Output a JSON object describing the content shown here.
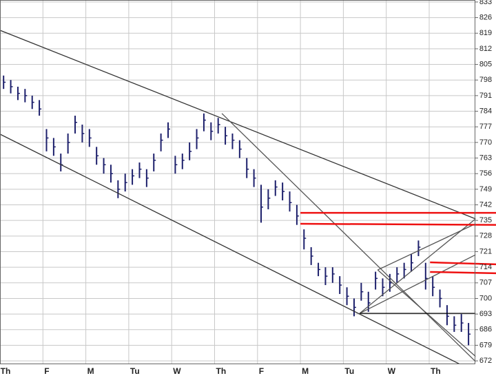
{
  "chart_data": {
    "type": "hlc",
    "categories": [
      "Th",
      "F",
      "M",
      "Tu",
      "W",
      "Th",
      "F",
      "M",
      "Tu",
      "W",
      "Th"
    ],
    "color": "#1c1f6b",
    "high": [
      800,
      798,
      795,
      794,
      791,
      789,
      776,
      772,
      765,
      774,
      782,
      778,
      776,
      768,
      763,
      760,
      753,
      756,
      758,
      761,
      758,
      765,
      774,
      779,
      764,
      765,
      770,
      776,
      783,
      779,
      781,
      777,
      774,
      771,
      763,
      758,
      751,
      749,
      753,
      752,
      748,
      742,
      731,
      723,
      716,
      714,
      714,
      710,
      705,
      700,
      707,
      703,
      712,
      709,
      711,
      714,
      716,
      720,
      726,
      716,
      710,
      704,
      697,
      692,
      693,
      689
    ],
    "low": [
      794,
      792,
      789,
      788,
      785,
      782,
      766,
      764,
      757,
      765,
      774,
      770,
      768,
      760,
      756,
      752,
      745,
      748,
      751,
      754,
      750,
      757,
      766,
      772,
      756,
      758,
      762,
      767,
      775,
      771,
      774,
      769,
      767,
      763,
      754,
      750,
      734,
      740,
      746,
      744,
      739,
      733,
      722,
      715,
      710,
      706,
      707,
      702,
      697,
      692,
      699,
      694,
      704,
      701,
      703,
      707,
      709,
      712,
      719,
      704,
      701,
      696,
      688,
      685,
      685,
      679
    ],
    "close": [
      797,
      795,
      792,
      791,
      788,
      785,
      772,
      768,
      760,
      770,
      779,
      774,
      772,
      764,
      760,
      756,
      749,
      752,
      755,
      758,
      754,
      762,
      771,
      776,
      760,
      762,
      766,
      772,
      780,
      775,
      778,
      773,
      771,
      767,
      758,
      754,
      741,
      745,
      750,
      748,
      743,
      737,
      727,
      719,
      713,
      710,
      711,
      706,
      701,
      696,
      703,
      698,
      709,
      705,
      707,
      711,
      713,
      716,
      723,
      709,
      705,
      700,
      692,
      688,
      689,
      684
    ],
    "trendlines": [
      {
        "x": [
          0,
          11.08
        ],
        "y": [
          820.3,
          735.7
        ],
        "color": "#333333"
      },
      {
        "x": [
          0,
          11.08
        ],
        "y": [
          773.7,
          667
        ],
        "color": "#333333"
      },
      {
        "x": [
          5.17,
          11.08
        ],
        "y": [
          783,
          671.7
        ],
        "color": "#555555"
      },
      {
        "x": [
          8.38,
          11.08
        ],
        "y": [
          693.3,
          735.7
        ],
        "color": "#555555"
      },
      {
        "x": [
          8.38,
          11.08
        ],
        "y": [
          693.3,
          719.6
        ],
        "color": "#555555"
      },
      {
        "x": [
          8.8,
          11.08
        ],
        "y": [
          712.8,
          674
        ],
        "color": "#555555"
      },
      {
        "x": [
          8.8,
          11.08
        ],
        "y": [
          712.8,
          733.5
        ],
        "color": "#555555"
      },
      {
        "x": [
          8.38,
          11.08
        ],
        "y": [
          693.3,
          693.3
        ],
        "color": "#000000"
      },
      {
        "x": [
          7.0,
          11.56
        ],
        "y": [
          738.4,
          738.4
        ],
        "color": "#ee1111"
      },
      {
        "x": [
          7.0,
          11.56
        ],
        "y": [
          733.5,
          733.0
        ],
        "color": "#ee1111"
      },
      {
        "x": [
          10.02,
          11.56
        ],
        "y": [
          716.2,
          715.3
        ],
        "color": "#ee1111"
      },
      {
        "x": [
          10.02,
          11.56
        ],
        "y": [
          711.9,
          711.3
        ],
        "color": "#ee1111"
      }
    ],
    "ylim": [
      670.8,
      833.9
    ],
    "yticks": [
      833,
      826,
      819,
      812,
      805,
      798,
      791,
      784,
      777,
      770,
      763,
      756,
      749,
      742,
      735,
      728,
      721,
      714,
      707,
      700,
      693,
      686,
      679,
      672
    ],
    "grid": true
  }
}
